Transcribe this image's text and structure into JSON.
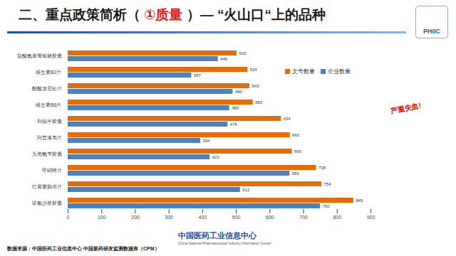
{
  "header": {
    "title": "二、重点政策简析（ ①质量 ）— “火山口“上的品种",
    "title_highlight": "①质量",
    "logo": "PHIIC"
  },
  "chart_data": {
    "type": "bar",
    "orientation": "horizontal",
    "categories": [
      "盐酸氨基葡萄糖胶囊",
      "维生素B2片",
      "醋酸泼尼松片",
      "维生素B6片",
      "利福平胶囊",
      "阿昔洛韦片",
      "头孢氨苄胶囊",
      "甲硝唑片",
      "红霉素肠溶片",
      "诺氟沙星胶囊"
    ],
    "series": [
      {
        "name": "文号数量",
        "color": "#e46c0a",
        "values": [
          502,
          534,
          540,
          550,
          634,
          660,
          666,
          738,
          754,
          849
        ]
      },
      {
        "name": "企业数量",
        "color": "#4f81bd",
        "values": [
          446,
          367,
          490,
          480,
          475,
          394,
          422,
          659,
          512,
          750
        ]
      }
    ],
    "xlim": [
      0,
      900
    ],
    "xticks": [
      0,
      100,
      200,
      300,
      400,
      500,
      600,
      700,
      800,
      900
    ],
    "grid": false,
    "legend": "top-right",
    "data_labels": true,
    "annotations": [
      "严重失血!"
    ]
  },
  "footer": {
    "org": "中国医药工业信息中心",
    "org_en": "China National Pharmaceutical Industry Information Center",
    "source": "数据来源：中国医药工业信息中心 中国新药研发监测数据库（CPM）"
  }
}
